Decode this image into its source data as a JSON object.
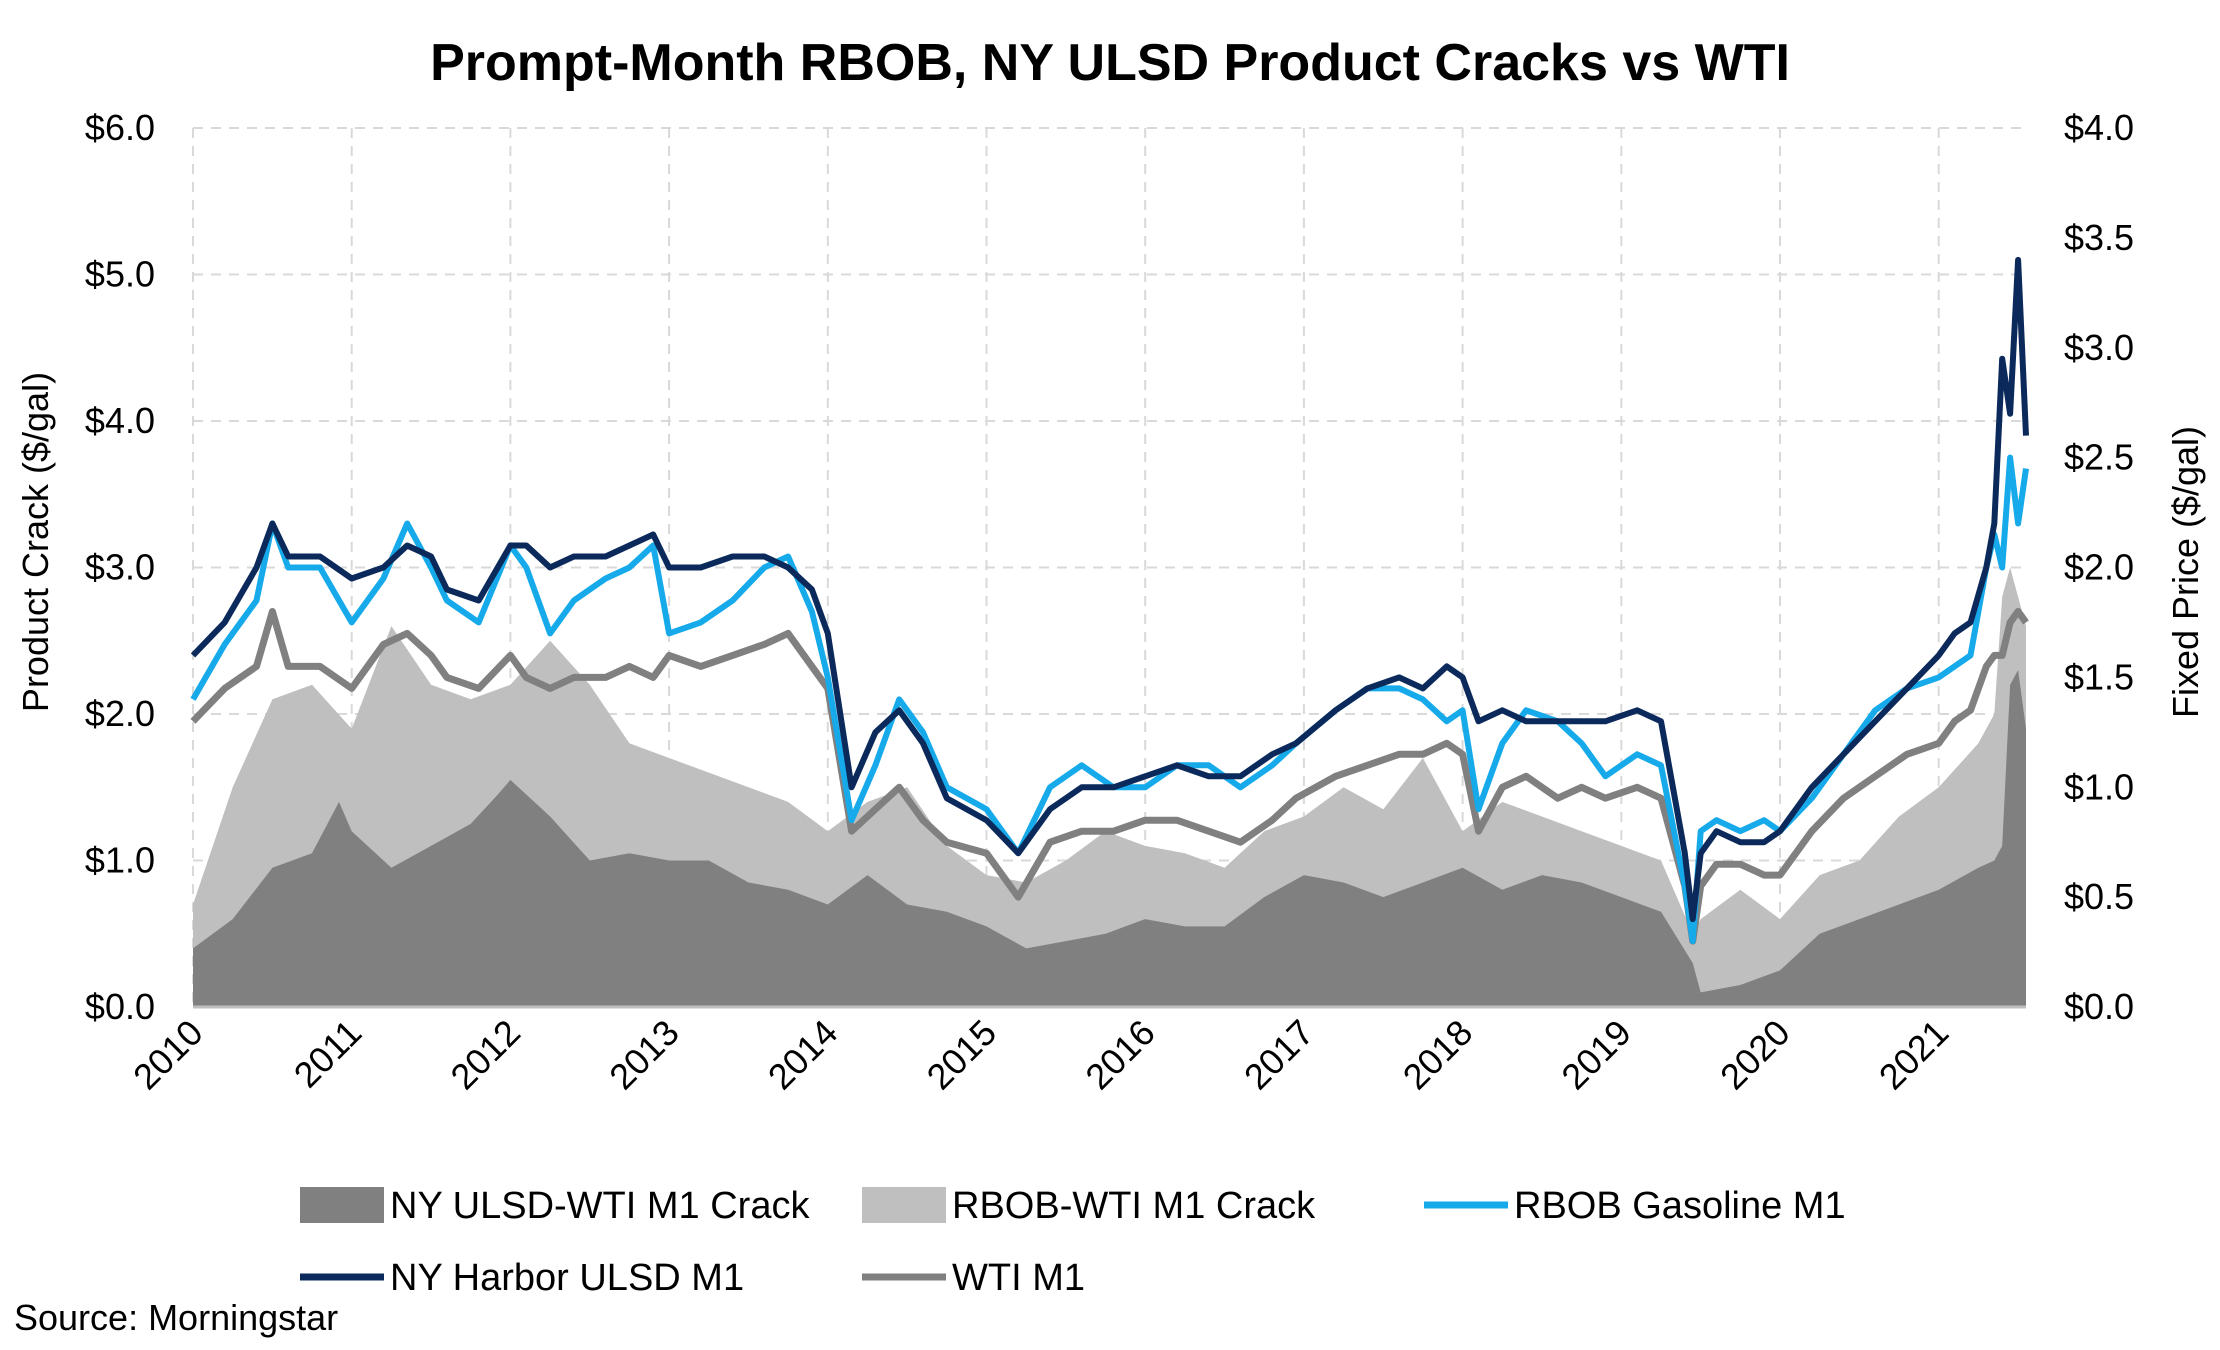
{
  "chart_data": {
    "type": "line",
    "title": "Prompt-Month RBOB, NY ULSD Product Cracks vs WTI",
    "ylabel_left": "Product Crack ($/gal)",
    "ylabel_right": "Fixed Price ($/gal)",
    "source": "Source: Morningstar",
    "x_range": [
      2010.0,
      2021.55
    ],
    "ylim_left": [
      0,
      6
    ],
    "ylim_right": [
      0,
      4
    ],
    "y_ticks_left": [
      "$0.0",
      "$1.0",
      "$2.0",
      "$3.0",
      "$4.0",
      "$5.0",
      "$6.0"
    ],
    "y_ticks_right": [
      "$0.0",
      "$0.5",
      "$1.0",
      "$1.5",
      "$2.0",
      "$2.5",
      "$3.0",
      "$3.5",
      "$4.0"
    ],
    "x_ticks": [
      "2010",
      "2011",
      "2012",
      "2013",
      "2014",
      "2015",
      "2016",
      "2017",
      "2018",
      "2019",
      "2020",
      "2021"
    ],
    "grid": "dashed",
    "legend_position": "bottom",
    "colors": {
      "ulsd_crack": "#808080",
      "rbob_crack": "#bfbfbf",
      "rbob": "#16aaeb",
      "ulsd": "#0b2a5b",
      "wti": "#808080"
    },
    "legend": [
      {
        "name": "NY ULSD-WTI M1 Crack",
        "kind": "area",
        "color": "#808080"
      },
      {
        "name": "RBOB-WTI M1 Crack",
        "kind": "area",
        "color": "#bfbfbf"
      },
      {
        "name": "RBOB Gasoline M1",
        "kind": "line",
        "color": "#16aaeb"
      },
      {
        "name": "NY Harbor ULSD M1",
        "kind": "line",
        "color": "#0b2a5b"
      },
      {
        "name": "WTI M1",
        "kind": "line",
        "color": "#808080"
      }
    ],
    "series": [
      {
        "name": "NY ULSD-WTI M1 Crack",
        "axis": "left",
        "kind": "area",
        "x": [
          2010.0,
          2010.25,
          2010.5,
          2010.75,
          2010.92,
          2011.0,
          2011.25,
          2011.5,
          2011.75,
          2011.92,
          2012.0,
          2012.25,
          2012.5,
          2012.75,
          2013.0,
          2013.25,
          2013.5,
          2013.75,
          2014.0,
          2014.25,
          2014.5,
          2014.75,
          2015.0,
          2015.25,
          2015.5,
          2015.75,
          2016.0,
          2016.25,
          2016.5,
          2016.75,
          2017.0,
          2017.25,
          2017.5,
          2017.75,
          2018.0,
          2018.25,
          2018.5,
          2018.75,
          2019.0,
          2019.25,
          2019.45,
          2019.5,
          2019.75,
          2020.0,
          2020.25,
          2020.5,
          2020.75,
          2021.0,
          2021.25,
          2021.35,
          2021.4,
          2021.45,
          2021.5,
          2021.55
        ],
        "values": [
          0.4,
          0.6,
          0.95,
          1.05,
          1.4,
          1.2,
          0.95,
          1.1,
          1.25,
          1.45,
          1.55,
          1.3,
          1.0,
          1.05,
          1.0,
          1.0,
          0.85,
          0.8,
          0.7,
          0.9,
          0.7,
          0.65,
          0.55,
          0.4,
          0.45,
          0.5,
          0.6,
          0.55,
          0.55,
          0.75,
          0.9,
          0.85,
          0.75,
          0.85,
          0.95,
          0.8,
          0.9,
          0.85,
          0.75,
          0.65,
          0.3,
          0.1,
          0.15,
          0.25,
          0.5,
          0.6,
          0.7,
          0.8,
          0.95,
          1.0,
          1.1,
          2.2,
          2.3,
          1.9
        ]
      },
      {
        "name": "RBOB-WTI M1 Crack",
        "axis": "left",
        "kind": "area",
        "x": [
          2010.0,
          2010.25,
          2010.5,
          2010.75,
          2011.0,
          2011.25,
          2011.5,
          2011.75,
          2012.0,
          2012.25,
          2012.5,
          2012.75,
          2013.0,
          2013.25,
          2013.5,
          2013.75,
          2014.0,
          2014.25,
          2014.5,
          2014.75,
          2015.0,
          2015.25,
          2015.5,
          2015.75,
          2016.0,
          2016.25,
          2016.5,
          2016.75,
          2017.0,
          2017.25,
          2017.5,
          2017.75,
          2018.0,
          2018.25,
          2018.5,
          2018.75,
          2019.0,
          2019.25,
          2019.45,
          2019.5,
          2019.75,
          2020.0,
          2020.25,
          2020.5,
          2020.75,
          2021.0,
          2021.25,
          2021.35,
          2021.4,
          2021.45,
          2021.5,
          2021.55
        ],
        "values": [
          0.7,
          1.5,
          2.1,
          2.2,
          1.9,
          2.6,
          2.2,
          2.1,
          2.2,
          2.5,
          2.2,
          1.8,
          1.7,
          1.6,
          1.5,
          1.4,
          1.2,
          1.4,
          1.5,
          1.1,
          0.9,
          0.85,
          1.0,
          1.2,
          1.1,
          1.05,
          0.95,
          1.2,
          1.3,
          1.5,
          1.35,
          1.7,
          1.2,
          1.4,
          1.3,
          1.2,
          1.1,
          1.0,
          0.5,
          0.6,
          0.8,
          0.6,
          0.9,
          1.0,
          1.3,
          1.5,
          1.8,
          2.0,
          2.8,
          3.0,
          2.8,
          2.6
        ]
      },
      {
        "name": "RBOB Gasoline M1",
        "axis": "right",
        "kind": "line",
        "x": [
          2010.0,
          2010.2,
          2010.4,
          2010.5,
          2010.6,
          2010.8,
          2011.0,
          2011.2,
          2011.35,
          2011.5,
          2011.6,
          2011.8,
          2012.0,
          2012.1,
          2012.25,
          2012.4,
          2012.6,
          2012.75,
          2012.9,
          2013.0,
          2013.2,
          2013.4,
          2013.6,
          2013.75,
          2013.9,
          2014.0,
          2014.15,
          2014.3,
          2014.45,
          2014.6,
          2014.75,
          2015.0,
          2015.2,
          2015.4,
          2015.6,
          2015.8,
          2016.0,
          2016.2,
          2016.4,
          2016.6,
          2016.8,
          2016.95,
          2017.2,
          2017.4,
          2017.6,
          2017.75,
          2017.9,
          2018.0,
          2018.1,
          2018.25,
          2018.4,
          2018.6,
          2018.75,
          2018.9,
          2019.1,
          2019.25,
          2019.4,
          2019.45,
          2019.5,
          2019.6,
          2019.75,
          2019.9,
          2020.0,
          2020.2,
          2020.4,
          2020.6,
          2020.8,
          2021.0,
          2021.1,
          2021.2,
          2021.3,
          2021.35,
          2021.4,
          2021.45,
          2021.5,
          2021.55
        ],
        "values": [
          1.4,
          1.65,
          1.85,
          2.2,
          2.0,
          2.0,
          1.75,
          1.95,
          2.2,
          2.0,
          1.85,
          1.75,
          2.1,
          2.0,
          1.7,
          1.85,
          1.95,
          2.0,
          2.1,
          1.7,
          1.75,
          1.85,
          2.0,
          2.05,
          1.8,
          1.5,
          0.85,
          1.1,
          1.4,
          1.25,
          1.0,
          0.9,
          0.7,
          1.0,
          1.1,
          1.0,
          1.0,
          1.1,
          1.1,
          1.0,
          1.1,
          1.2,
          1.35,
          1.45,
          1.45,
          1.4,
          1.3,
          1.35,
          0.9,
          1.2,
          1.35,
          1.3,
          1.2,
          1.05,
          1.15,
          1.1,
          0.55,
          0.3,
          0.8,
          0.85,
          0.8,
          0.85,
          0.8,
          0.95,
          1.15,
          1.35,
          1.45,
          1.5,
          1.55,
          1.6,
          2.0,
          2.15,
          2.0,
          2.5,
          2.2,
          2.45
        ]
      },
      {
        "name": "NY Harbor ULSD M1",
        "axis": "right",
        "kind": "line",
        "x": [
          2010.0,
          2010.2,
          2010.4,
          2010.5,
          2010.6,
          2010.8,
          2011.0,
          2011.2,
          2011.35,
          2011.5,
          2011.6,
          2011.8,
          2012.0,
          2012.1,
          2012.25,
          2012.4,
          2012.6,
          2012.75,
          2012.9,
          2013.0,
          2013.2,
          2013.4,
          2013.6,
          2013.75,
          2013.9,
          2014.0,
          2014.15,
          2014.3,
          2014.45,
          2014.6,
          2014.75,
          2015.0,
          2015.2,
          2015.4,
          2015.6,
          2015.8,
          2016.0,
          2016.2,
          2016.4,
          2016.6,
          2016.8,
          2016.95,
          2017.2,
          2017.4,
          2017.6,
          2017.75,
          2017.9,
          2018.0,
          2018.1,
          2018.25,
          2018.4,
          2018.6,
          2018.75,
          2018.9,
          2019.1,
          2019.25,
          2019.4,
          2019.45,
          2019.5,
          2019.6,
          2019.75,
          2019.9,
          2020.0,
          2020.2,
          2020.4,
          2020.6,
          2020.8,
          2021.0,
          2021.1,
          2021.2,
          2021.3,
          2021.35,
          2021.4,
          2021.45,
          2021.5,
          2021.55
        ],
        "values": [
          1.6,
          1.75,
          2.0,
          2.2,
          2.05,
          2.05,
          1.95,
          2.0,
          2.1,
          2.05,
          1.9,
          1.85,
          2.1,
          2.1,
          2.0,
          2.05,
          2.05,
          2.1,
          2.15,
          2.0,
          2.0,
          2.05,
          2.05,
          2.0,
          1.9,
          1.7,
          1.0,
          1.25,
          1.35,
          1.2,
          0.95,
          0.85,
          0.7,
          0.9,
          1.0,
          1.0,
          1.05,
          1.1,
          1.05,
          1.05,
          1.15,
          1.2,
          1.35,
          1.45,
          1.5,
          1.45,
          1.55,
          1.5,
          1.3,
          1.35,
          1.3,
          1.3,
          1.3,
          1.3,
          1.35,
          1.3,
          0.7,
          0.4,
          0.7,
          0.8,
          0.75,
          0.75,
          0.8,
          1.0,
          1.15,
          1.3,
          1.45,
          1.6,
          1.7,
          1.75,
          2.0,
          2.2,
          2.95,
          2.7,
          3.4,
          2.6
        ]
      },
      {
        "name": "WTI M1",
        "axis": "right",
        "kind": "line",
        "x": [
          2010.0,
          2010.2,
          2010.4,
          2010.5,
          2010.6,
          2010.8,
          2011.0,
          2011.2,
          2011.35,
          2011.5,
          2011.6,
          2011.8,
          2012.0,
          2012.1,
          2012.25,
          2012.4,
          2012.6,
          2012.75,
          2012.9,
          2013.0,
          2013.2,
          2013.4,
          2013.6,
          2013.75,
          2013.9,
          2014.0,
          2014.15,
          2014.3,
          2014.45,
          2014.6,
          2014.75,
          2015.0,
          2015.2,
          2015.4,
          2015.6,
          2015.8,
          2016.0,
          2016.2,
          2016.4,
          2016.6,
          2016.8,
          2016.95,
          2017.2,
          2017.4,
          2017.6,
          2017.75,
          2017.9,
          2018.0,
          2018.1,
          2018.25,
          2018.4,
          2018.6,
          2018.75,
          2018.9,
          2019.1,
          2019.25,
          2019.4,
          2019.45,
          2019.5,
          2019.6,
          2019.75,
          2019.9,
          2020.0,
          2020.2,
          2020.4,
          2020.6,
          2020.8,
          2021.0,
          2021.1,
          2021.2,
          2021.3,
          2021.35,
          2021.4,
          2021.45,
          2021.5,
          2021.55
        ],
        "values": [
          1.3,
          1.45,
          1.55,
          1.8,
          1.55,
          1.55,
          1.45,
          1.65,
          1.7,
          1.6,
          1.5,
          1.45,
          1.6,
          1.5,
          1.45,
          1.5,
          1.5,
          1.55,
          1.5,
          1.6,
          1.55,
          1.6,
          1.65,
          1.7,
          1.55,
          1.45,
          0.8,
          0.9,
          1.0,
          0.85,
          0.75,
          0.7,
          0.5,
          0.75,
          0.8,
          0.8,
          0.85,
          0.85,
          0.8,
          0.75,
          0.85,
          0.95,
          1.05,
          1.1,
          1.15,
          1.15,
          1.2,
          1.15,
          0.8,
          1.0,
          1.05,
          0.95,
          1.0,
          0.95,
          1.0,
          0.95,
          0.55,
          0.3,
          0.55,
          0.65,
          0.65,
          0.6,
          0.6,
          0.8,
          0.95,
          1.05,
          1.15,
          1.2,
          1.3,
          1.35,
          1.55,
          1.6,
          1.6,
          1.75,
          1.8,
          1.75
        ]
      }
    ]
  }
}
